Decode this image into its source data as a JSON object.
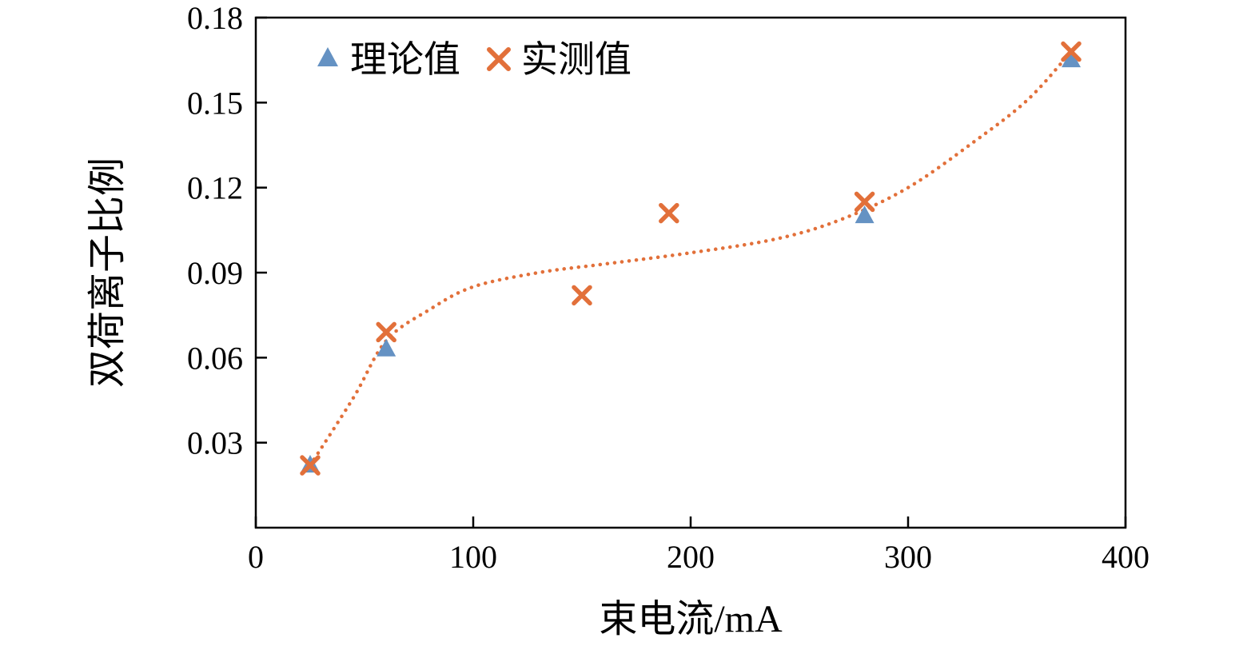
{
  "figure": {
    "background": "#ffffff",
    "axis_color": "#000000"
  },
  "chart_data": {
    "type": "scatter",
    "title": "",
    "xlabel": "束电流/mA",
    "ylabel": "双荷离子比例",
    "xlim": [
      0,
      400
    ],
    "ylim": [
      0,
      0.18
    ],
    "x_ticks": [
      0,
      100,
      200,
      300,
      400
    ],
    "y_ticks": [
      0.03,
      0.06,
      0.09,
      0.12,
      0.15,
      0.18
    ],
    "grid": false,
    "legend_position": "top-left-inside",
    "series": [
      {
        "name": "理论值",
        "marker": "triangle",
        "color": "#6592c3",
        "points": [
          [
            25,
            0.022
          ],
          [
            60,
            0.063
          ],
          [
            280,
            0.11
          ],
          [
            375,
            0.165
          ]
        ]
      },
      {
        "name": "实测值",
        "marker": "x",
        "color": "#e2703a",
        "points": [
          [
            25,
            0.022
          ],
          [
            60,
            0.069
          ],
          [
            150,
            0.082
          ],
          [
            190,
            0.111
          ],
          [
            280,
            0.115
          ],
          [
            375,
            0.168
          ]
        ]
      }
    ],
    "trend_line": {
      "series": "实测值",
      "style": "dotted",
      "color": "#e2703a",
      "points": [
        [
          25,
          0.022
        ],
        [
          45,
          0.046
        ],
        [
          60,
          0.066
        ],
        [
          80,
          0.077
        ],
        [
          100,
          0.085
        ],
        [
          130,
          0.09
        ],
        [
          160,
          0.093
        ],
        [
          200,
          0.097
        ],
        [
          240,
          0.102
        ],
        [
          270,
          0.109
        ],
        [
          300,
          0.12
        ],
        [
          330,
          0.136
        ],
        [
          355,
          0.151
        ],
        [
          375,
          0.168
        ]
      ]
    }
  }
}
